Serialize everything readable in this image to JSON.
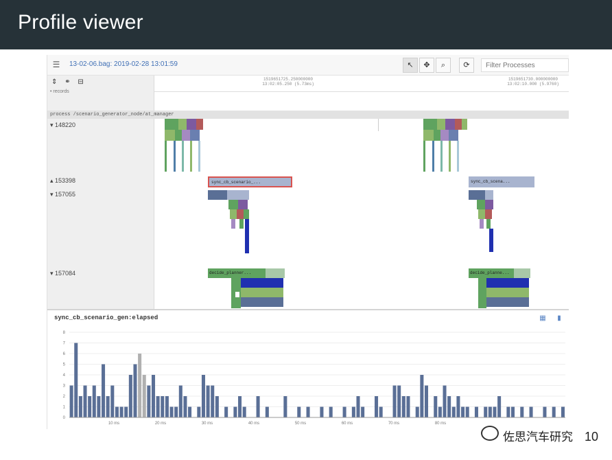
{
  "slide": {
    "title": "Profile viewer",
    "page_number": "10"
  },
  "watermark": {
    "text": "佐思汽车研究"
  },
  "toolbar": {
    "file_label": "13-02-06.bag: 2019-02-28 13:01:59",
    "filter_placeholder": "Filter Processes",
    "buttons": [
      {
        "name": "select-tool",
        "glyph": "↖",
        "active": true
      },
      {
        "name": "pan-tool",
        "glyph": "✥",
        "active": false
      },
      {
        "name": "zoom-tool",
        "glyph": "⌕",
        "active": false
      },
      {
        "name": "refresh",
        "glyph": "⟳",
        "active": false
      }
    ]
  },
  "sidebar": {
    "tools": [
      "⇕",
      "⚭",
      "⊟"
    ],
    "sub_label": "• records"
  },
  "ruler": {
    "labels": [
      {
        "line1": "1519651725.250000000",
        "line2": "13:02:05.250 (5.73ms)"
      },
      {
        "line1": "1519651730.000000000",
        "line2": "13:02:10.000 (5.9760)"
      }
    ]
  },
  "process_bar_label": "process /scenario_generator_node/at_manager",
  "processes": [
    {
      "pid": "▾ 148220"
    },
    {
      "pid": "▴ 153398"
    },
    {
      "pid": "▾ 157055"
    },
    {
      "pid": "▾ 157084"
    }
  ],
  "blocks": [
    {
      "label": "sync_cb_scenario_...",
      "color": "#a8b4cf"
    },
    {
      "label": "sync_cb_scena...",
      "color": "#a8b4cf"
    },
    {
      "label": "decide_planner...",
      "color": "#5fa35f"
    },
    {
      "label": "decide_planne...",
      "color": "#5fa35f"
    }
  ],
  "histogram": {
    "title": "sync_cb_scenario_gen:elapsed",
    "icons": [
      "table-icon",
      "chart-icon"
    ],
    "axis_labels": [
      "10 ms",
      "20 ms",
      "30 ms",
      "40 ms",
      "50 ms",
      "60 ms",
      "70 ms",
      "80 ms"
    ]
  },
  "chart_data": {
    "type": "bar",
    "title": "sync_cb_scenario_gen:elapsed",
    "ylim": [
      0,
      8
    ],
    "values": [
      3,
      7,
      2,
      3,
      2,
      3,
      2,
      5,
      2,
      3,
      1,
      1,
      1,
      4,
      5,
      6,
      4,
      3,
      4,
      2,
      2,
      2,
      1,
      1,
      3,
      2,
      1,
      0,
      1,
      4,
      3,
      3,
      2,
      0,
      1,
      0,
      1,
      2,
      1,
      0,
      0,
      2,
      0,
      1,
      0,
      0,
      0,
      2,
      0,
      0,
      1,
      0,
      1,
      0,
      0,
      1,
      0,
      1,
      0,
      0,
      1,
      0,
      1,
      2,
      1,
      0,
      0,
      2,
      1,
      0,
      0,
      3,
      3,
      2,
      2,
      0,
      1,
      4,
      3,
      0,
      2,
      1,
      3,
      2,
      1,
      2,
      1,
      1,
      0,
      1,
      0,
      1,
      1,
      1,
      2,
      0,
      1,
      1,
      0,
      1,
      0,
      1,
      0,
      0,
      1,
      0,
      1,
      0,
      1
    ],
    "accent_color": "#5a6f96",
    "highlight_color": "#b0b0b0",
    "grid": true
  }
}
